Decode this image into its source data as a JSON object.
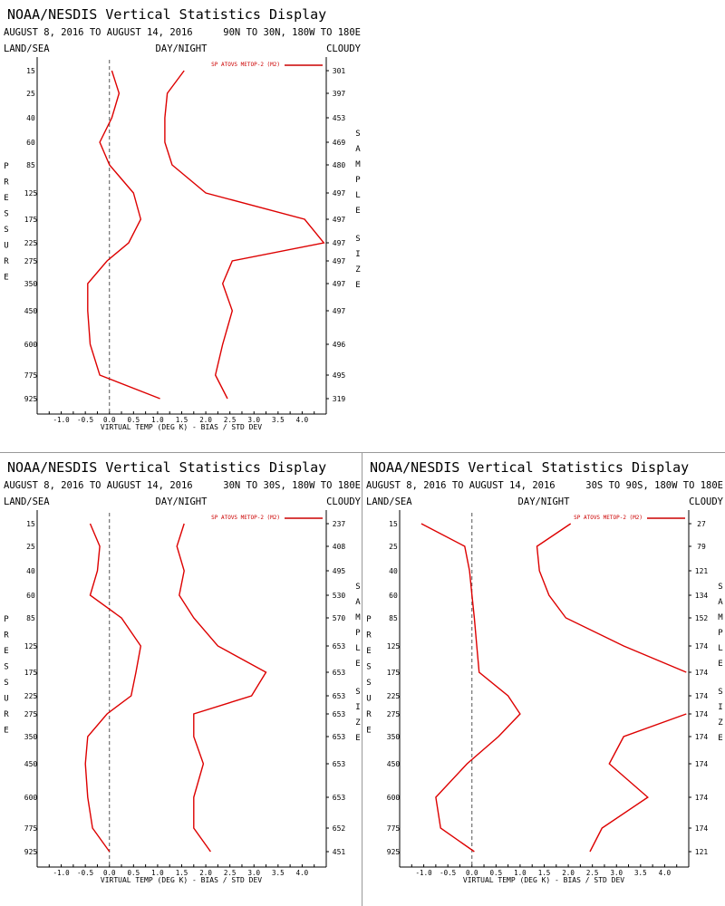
{
  "chart_data": [
    {
      "type": "line",
      "title": "NOAA/NESDIS Vertical Statistics Display",
      "date_range": "AUGUST 8, 2016 TO AUGUST 14, 2016",
      "region": "90N TO 30N, 180W TO 180E",
      "header_left": "LAND/SEA",
      "header_center": "DAY/NIGHT",
      "header_right": "CLOUDY",
      "left_axis_label": "PRESSURE",
      "right_axis_label": "SAMPLE SIZE",
      "xlabel": "VIRTUAL TEMP (DEG K) - BIAS / STD DEV",
      "xlim": [
        -1.5,
        4.5
      ],
      "x_ticks": [
        "-1.0",
        "-0.5",
        "0.0",
        "0.5",
        "1.0",
        "1.5",
        "2.0",
        "2.5",
        "3.0",
        "3.5",
        "4.0"
      ],
      "pressure_levels": [
        "15",
        "25",
        "40",
        "60",
        "85",
        "125",
        "175",
        "225",
        "275",
        "350",
        "450",
        "600",
        "775",
        "925"
      ],
      "sample_sizes": [
        "301",
        "397",
        "453",
        "469",
        "480",
        "497",
        "497",
        "497",
        "497",
        "497",
        "497",
        "496",
        "495",
        "319"
      ],
      "legend": "SP ATOVS METOP-2 (M2)",
      "series": [
        {
          "values": [
            0.05,
            0.2,
            0.05,
            -0.2,
            0.0,
            0.5,
            0.65,
            0.4,
            -0.05,
            -0.45,
            -0.45,
            -0.4,
            -0.2,
            1.05
          ]
        },
        {
          "values": [
            1.55,
            1.2,
            1.15,
            1.15,
            1.3,
            2.0,
            4.05,
            4.45,
            2.55,
            2.35,
            2.55,
            2.35,
            2.2,
            2.45
          ]
        }
      ]
    },
    {
      "type": "line",
      "title": "NOAA/NESDIS Vertical Statistics Display",
      "date_range": "AUGUST 8, 2016 TO AUGUST 14, 2016",
      "region": "30N TO 30S, 180W TO 180E",
      "header_left": "LAND/SEA",
      "header_center": "DAY/NIGHT",
      "header_right": "CLOUDY",
      "left_axis_label": "PRESSURE",
      "right_axis_label": "SAMPLE SIZE",
      "xlabel": "VIRTUAL TEMP (DEG K) - BIAS / STD DEV",
      "xlim": [
        -1.5,
        4.5
      ],
      "x_ticks": [
        "-1.0",
        "-0.5",
        "0.0",
        "0.5",
        "1.0",
        "1.5",
        "2.0",
        "2.5",
        "3.0",
        "3.5",
        "4.0"
      ],
      "pressure_levels": [
        "15",
        "25",
        "40",
        "60",
        "85",
        "125",
        "175",
        "225",
        "275",
        "350",
        "450",
        "600",
        "775",
        "925"
      ],
      "sample_sizes": [
        "237",
        "408",
        "495",
        "530",
        "570",
        "653",
        "653",
        "653",
        "653",
        "653",
        "653",
        "653",
        "652",
        "451"
      ],
      "legend": "SP ATOVS METOP-2 (M2)",
      "series": [
        {
          "values": [
            -0.4,
            -0.2,
            -0.25,
            -0.4,
            0.25,
            0.65,
            0.55,
            0.45,
            -0.05,
            -0.45,
            -0.5,
            -0.45,
            -0.35,
            0.0
          ]
        },
        {
          "values": [
            1.55,
            1.4,
            1.55,
            1.45,
            1.75,
            2.25,
            3.25,
            2.95,
            1.75,
            1.75,
            1.95,
            1.75,
            1.75,
            2.1
          ]
        }
      ]
    },
    {
      "type": "line",
      "title": "NOAA/NESDIS Vertical Statistics Display",
      "date_range": "AUGUST 8, 2016 TO AUGUST 14, 2016",
      "region": "30S TO 90S, 180W TO 180E",
      "header_left": "LAND/SEA",
      "header_center": "DAY/NIGHT",
      "header_right": "CLOUDY",
      "left_axis_label": "PRESSURE",
      "right_axis_label": "SAMPLE SIZE",
      "xlabel": "VIRTUAL TEMP (DEG K) - BIAS / STD DEV",
      "xlim": [
        -1.5,
        4.5
      ],
      "x_ticks": [
        "-1.0",
        "-0.5",
        "0.0",
        "0.5",
        "1.0",
        "1.5",
        "2.0",
        "2.5",
        "3.0",
        "3.5",
        "4.0"
      ],
      "pressure_levels": [
        "15",
        "25",
        "40",
        "60",
        "85",
        "125",
        "175",
        "225",
        "275",
        "350",
        "450",
        "600",
        "775",
        "925"
      ],
      "sample_sizes": [
        "27",
        "79",
        "121",
        "134",
        "152",
        "174",
        "174",
        "174",
        "174",
        "174",
        "174",
        "174",
        "174",
        "121"
      ],
      "legend": "SP ATOVS METOP-2 (M2)",
      "series": [
        {
          "values": [
            -1.05,
            -0.15,
            -0.05,
            0.0,
            0.05,
            0.1,
            0.15,
            0.75,
            1.0,
            0.55,
            -0.1,
            -0.75,
            -0.65,
            0.05
          ]
        },
        {
          "values": [
            2.05,
            1.35,
            1.4,
            1.6,
            1.95,
            3.15,
            4.45,
            null,
            4.45,
            3.15,
            2.85,
            3.65,
            2.7,
            2.45
          ]
        }
      ]
    }
  ]
}
